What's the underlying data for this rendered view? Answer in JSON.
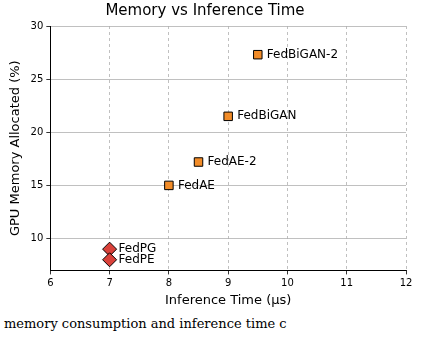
{
  "chart_data": {
    "type": "scatter",
    "title": "Memory vs Inference Time",
    "x_label": "Inference Time (μs)",
    "y_label": "GPU Memory Allocated (%)",
    "series": [
      {
        "color": "#d9413a",
        "marker": "diamond",
        "x": [
          7,
          7
        ],
        "values": [
          9,
          8
        ],
        "labels": [
          "FedPG",
          "FedPE"
        ]
      },
      {
        "color": "#f28c28",
        "marker": "square",
        "x": [
          8,
          8.5,
          9,
          9.5
        ],
        "values": [
          15,
          17.2,
          21.5,
          27.3
        ],
        "labels": [
          "FedAE",
          "FedAE-2",
          "FedBiGAN",
          "FedBiGAN-2"
        ]
      }
    ],
    "xlim": [
      6,
      12
    ],
    "xticks": [
      6,
      7,
      8,
      9,
      10,
      11,
      12
    ],
    "ylim": [
      7,
      30
    ],
    "yticks": [
      10,
      15,
      20,
      25,
      30
    ],
    "grid": true,
    "caption": "memory consumption and inference time c"
  }
}
